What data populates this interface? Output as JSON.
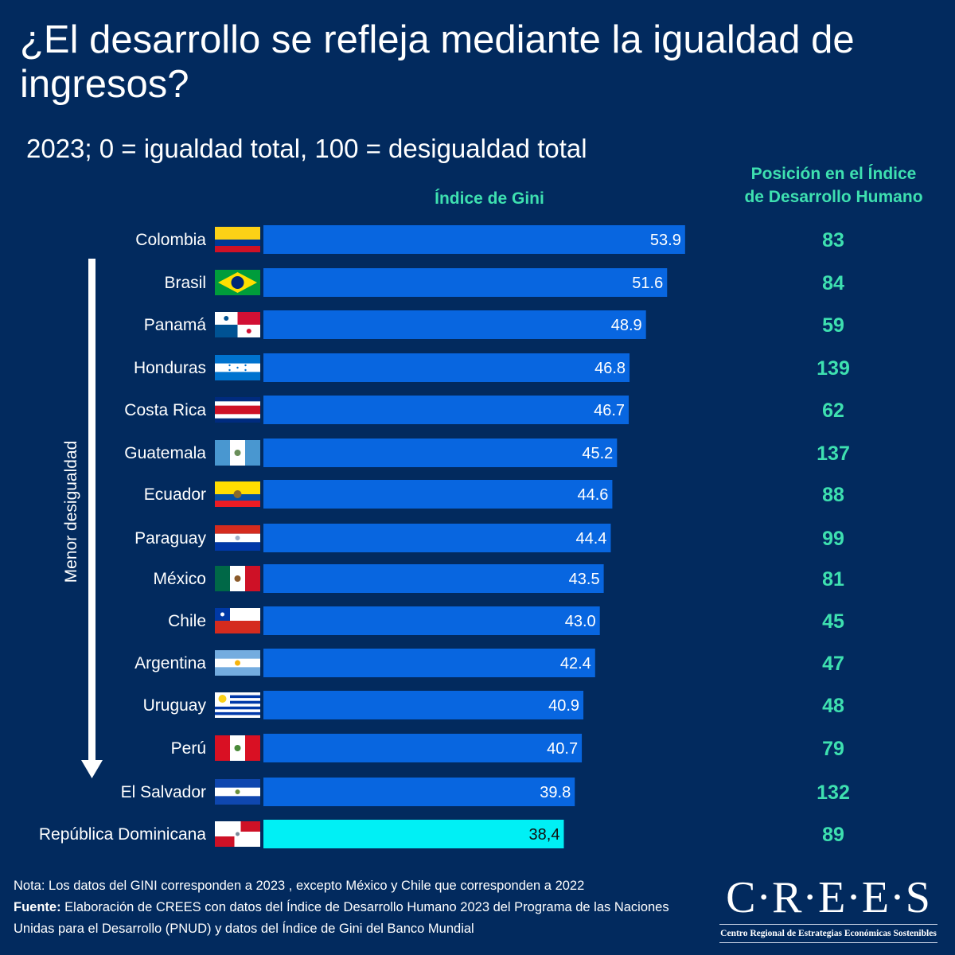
{
  "title": "¿El desarrollo se refleja mediante la igualdad de ingresos?",
  "subtitle": "2023; 0 = igualdad total, 100 = desigualdad total",
  "gini_header": "Índice de Gini",
  "idh_header_line1": "Posición en el Índice",
  "idh_header_line2": "de Desarrollo Humano",
  "arrow_label": "Menor desigualdad",
  "colors": {
    "background": "#022a5e",
    "bar": "#0866e0",
    "bar_highlight": "#00f0f5",
    "accent_text": "#3ee0b0"
  },
  "chart_data": {
    "type": "bar",
    "orientation": "horizontal",
    "title": "Índice de Gini",
    "xlabel": "",
    "ylabel": "",
    "xlim": [
      0,
      60
    ],
    "grid": false,
    "categories": [
      "Colombia",
      "Brasil",
      "Panamá",
      "Honduras",
      "Costa Rica",
      "Guatemala",
      "Ecuador",
      "Paraguay",
      "México",
      "Chile",
      "Argentina",
      "Uruguay",
      "Perú",
      "El Salvador",
      "República Dominicana"
    ],
    "flags": [
      "colombia",
      "brasil",
      "panama",
      "honduras",
      "costa-rica",
      "guatemala",
      "ecuador",
      "paraguay",
      "mexico",
      "chile",
      "argentina",
      "uruguay",
      "peru",
      "el-salvador",
      "republica-dominicana"
    ],
    "values": [
      53.9,
      51.6,
      48.9,
      46.8,
      46.7,
      45.2,
      44.6,
      44.4,
      43.5,
      43.0,
      42.4,
      40.9,
      40.7,
      39.8,
      38.4
    ],
    "value_labels": [
      "53.9",
      "51.6",
      "48.9",
      "46.8",
      "46.7",
      "45.2",
      "44.6",
      "44.4",
      "43.5",
      "43.0",
      "42.4",
      "40.9",
      "40.7",
      "39.8",
      "38,4"
    ],
    "highlight": [
      "República Dominicana"
    ],
    "secondary_series": {
      "name": "Posición en el Índice de Desarrollo Humano",
      "values": [
        83,
        84,
        59,
        139,
        62,
        137,
        88,
        99,
        81,
        45,
        47,
        48,
        79,
        132,
        89
      ]
    }
  },
  "footer": {
    "note": "Nota: Los datos del GINI corresponden a 2023 , excepto México y Chile que corresponden a 2022",
    "source_label": "Fuente:",
    "source_text": " Elaboración de CREES con datos del  Índice de Desarrollo Humano 2023 del Programa de las Naciones Unidas para el Desarrollo (PNUD) y datos del Índice de Gini del Banco Mundial"
  },
  "logo": {
    "main": "C·R·E·E·S",
    "sub": "Centro Regional de Estrategias Económicas Sostenibles"
  }
}
